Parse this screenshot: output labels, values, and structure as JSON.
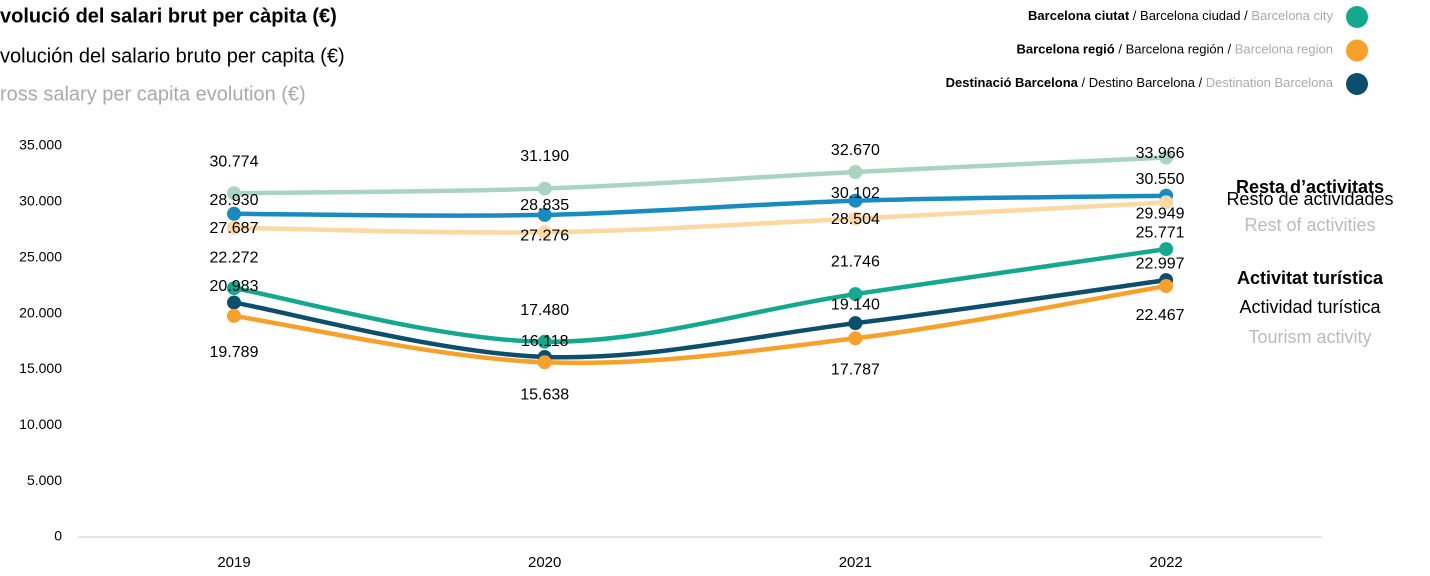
{
  "chart_data": {
    "type": "line",
    "title": [
      "volució del salari brut per càpita (€)",
      "volución del salario bruto per capita (€)",
      "ross salary per capita evolution (€)"
    ],
    "legend": {
      "separator": " / ",
      "entries": [
        {
          "texts": [
            "Barcelona ciutat",
            "Barcelona ciudad",
            "Barcelona city"
          ],
          "color": "#14a98f"
        },
        {
          "texts": [
            "Barcelona regió",
            "Barcelona región",
            "Barcelona region"
          ],
          "color": "#f7a12a"
        },
        {
          "texts": [
            "Destinació Barcelona",
            "Destino Barcelona",
            "Destination Barcelona"
          ],
          "color": "#0b4f6c"
        }
      ]
    },
    "groups": [
      {
        "label": [
          "Resta d’activitats",
          "Resto de actividades",
          "Rest of activities"
        ]
      },
      {
        "label": [
          "Activitat turística",
          "Actividad turística",
          "Tourism activity"
        ]
      }
    ],
    "categories": [
      "2019",
      "2020",
      "2021",
      "2022"
    ],
    "series": [
      {
        "color": "#a8d4c1",
        "values": [
          30774,
          31190,
          32670,
          33966
        ],
        "value_labels": [
          "30.774",
          "31.190",
          "32.670",
          "33.966"
        ]
      },
      {
        "color": "#1a8bc0",
        "values": [
          28930,
          28835,
          30102,
          30550
        ],
        "value_labels": [
          "28.930",
          "28.835",
          "30.102",
          "30.550"
        ]
      },
      {
        "color": "#fdd8a2",
        "values": [
          27687,
          27276,
          28504,
          29949
        ],
        "value_labels": [
          "27.687",
          "27.276",
          "28.504",
          "29.949"
        ]
      },
      {
        "color": "#14a98f",
        "values": [
          22272,
          17480,
          21746,
          25771
        ],
        "value_labels": [
          "22.272",
          "17.480",
          "21.746",
          "25.771"
        ]
      },
      {
        "color": "#0b4f6c",
        "values": [
          20983,
          16118,
          19140,
          22997
        ],
        "value_labels": [
          "20.983",
          "16.118",
          "19.140",
          "22.997"
        ]
      },
      {
        "color": "#f7a12a",
        "values": [
          19789,
          15638,
          17787,
          22467
        ],
        "value_labels": [
          "19.789",
          "15.638",
          "17.787",
          "22.467"
        ]
      }
    ],
    "ylim": [
      0,
      35000
    ],
    "yticks": [
      0,
      {
        "value": 5000,
        "label": "5.000"
      },
      {
        "value": 10000,
        "label": "10.000"
      },
      {
        "value": 15000,
        "label": "15.000"
      },
      {
        "value": 20000,
        "label": "20.000"
      },
      {
        "value": 25000,
        "label": "25.000"
      },
      {
        "value": 30000,
        "label": "30.000"
      },
      {
        "value": 35000,
        "label": "35.000"
      }
    ],
    "grid": false
  }
}
